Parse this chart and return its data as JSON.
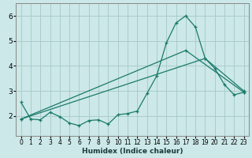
{
  "xlabel": "Humidex (Indice chaleur)",
  "background_color": "#cce8e8",
  "grid_color": "#aacccc",
  "line_color": "#1a7a6a",
  "xlim": [
    -0.5,
    23.5
  ],
  "ylim": [
    1.2,
    6.5
  ],
  "x_ticks": [
    0,
    1,
    2,
    3,
    4,
    5,
    6,
    7,
    8,
    9,
    10,
    11,
    12,
    13,
    14,
    15,
    16,
    17,
    18,
    19,
    20,
    21,
    22,
    23
  ],
  "y_ticks": [
    2,
    3,
    4,
    5,
    6
  ],
  "line1_x": [
    0,
    1,
    2,
    3,
    4,
    5,
    6,
    7,
    8,
    9,
    10,
    11,
    12,
    13,
    14,
    15,
    16,
    17,
    18,
    19,
    20,
    21,
    22,
    23
  ],
  "line1_y": [
    2.55,
    1.88,
    1.85,
    2.15,
    1.98,
    1.72,
    1.62,
    1.82,
    1.85,
    1.68,
    2.05,
    2.1,
    2.2,
    2.9,
    3.6,
    4.92,
    5.72,
    6.0,
    5.55,
    4.3,
    3.9,
    3.25,
    2.85,
    2.95
  ],
  "line2_x": [
    0,
    17,
    23
  ],
  "line2_y": [
    1.88,
    4.62,
    2.95
  ],
  "line3_x": [
    0,
    19,
    23
  ],
  "line3_y": [
    1.88,
    4.3,
    3.0
  ]
}
